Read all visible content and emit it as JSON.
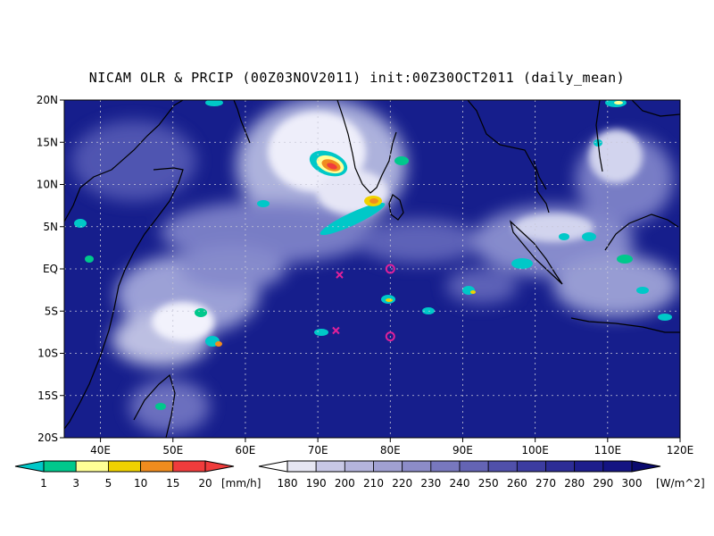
{
  "title": "NICAM OLR & PRCIP (00Z03NOV2011) init:00Z30OCT2011 (daily_mean)",
  "map": {
    "lat_labels": [
      "20N",
      "15N",
      "10N",
      "5N",
      "EQ",
      "5S",
      "10S",
      "15S",
      "20S"
    ],
    "lon_labels": [
      "40E",
      "50E",
      "60E",
      "70E",
      "80E",
      "90E",
      "100E",
      "110E",
      "120E"
    ],
    "lat_range": [
      -20,
      20
    ],
    "lon_range": [
      35,
      120
    ],
    "grid": "dotted",
    "background_color": "#161e8c",
    "markers": [
      {
        "shape": "x",
        "lon": 73,
        "lat": -0.7,
        "color": "#e0209a"
      },
      {
        "shape": "circle",
        "lon": 80,
        "lat": 0,
        "color": "#e0209a"
      },
      {
        "shape": "x",
        "lon": 72.5,
        "lat": -7.3,
        "color": "#e0209a"
      },
      {
        "shape": "circle",
        "lon": 80,
        "lat": -8,
        "color": "#e0209a"
      }
    ]
  },
  "precip_legend": {
    "values": [
      "1",
      "3",
      "5",
      "10",
      "15",
      "20"
    ],
    "unit": "[mm/h]",
    "colors": [
      "#00c8c8",
      "#00c88c",
      "#ffff96",
      "#f0d200",
      "#f08c1e",
      "#f03c3c"
    ]
  },
  "olr_legend": {
    "values": [
      "180",
      "190",
      "200",
      "210",
      "220",
      "230",
      "240",
      "250",
      "260",
      "270",
      "280",
      "290",
      "300"
    ],
    "unit": "[W/m^2]",
    "colors": [
      "#ffffff",
      "#e6e6f2",
      "#c8c8e6",
      "#b4b4dc",
      "#a0a0d2",
      "#8c8cc8",
      "#7878be",
      "#6464b4",
      "#5050aa",
      "#3c3ca0",
      "#2d2d96",
      "#1e1e8c",
      "#141482",
      "#0a0a6e"
    ]
  }
}
